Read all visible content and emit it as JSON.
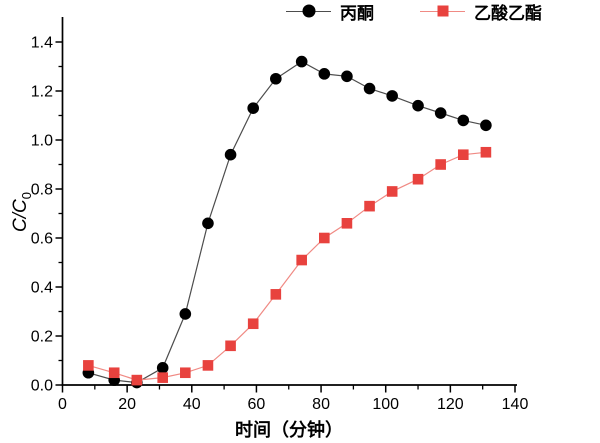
{
  "chart_data": {
    "type": "line",
    "title": "",
    "xlabel": "时间（分钟）",
    "ylabel": "C/C0",
    "ylabel_main": "C/C",
    "ylabel_sub": "0",
    "xlim": [
      0,
      140
    ],
    "ylim": [
      0,
      1.45
    ],
    "grid": false,
    "legend_position": "top",
    "axis_color": "#000000",
    "background_color": "#ffffff",
    "x_major_ticks": [
      "0",
      "20",
      "40",
      "60",
      "80",
      "100",
      "120",
      "140"
    ],
    "x_major_values": [
      0,
      20,
      40,
      60,
      80,
      100,
      120,
      140
    ],
    "x_minor_values": [
      10,
      30,
      50,
      70,
      90,
      110,
      130
    ],
    "y_major_ticks": [
      "0.0",
      "0.2",
      "0.4",
      "0.6",
      "0.8",
      "1.0",
      "1.2",
      "1.4"
    ],
    "y_major_values": [
      0.0,
      0.2,
      0.4,
      0.6,
      0.8,
      1.0,
      1.2,
      1.4
    ],
    "y_minor_values": [
      0.1,
      0.3,
      0.5,
      0.7,
      0.9,
      1.1,
      1.3
    ],
    "x": [
      8,
      16,
      23,
      31,
      38,
      45,
      52,
      59,
      66,
      74,
      81,
      88,
      95,
      102,
      110,
      117,
      124,
      131
    ],
    "series": [
      {
        "name": "丙酮",
        "key": "acetone",
        "marker": "circle",
        "color": "#000000",
        "line_color": "#4d4d4d",
        "values": [
          0.05,
          0.02,
          0.01,
          0.07,
          0.29,
          0.66,
          0.94,
          1.13,
          1.25,
          1.32,
          1.27,
          1.26,
          1.21,
          1.18,
          1.14,
          1.11,
          1.08,
          1.06
        ]
      },
      {
        "name": "乙酸乙酯",
        "key": "ethyl-acetate",
        "marker": "square",
        "color": "#e8423e",
        "line_color": "#f08a84",
        "values": [
          0.08,
          0.05,
          0.02,
          0.03,
          0.05,
          0.08,
          0.16,
          0.25,
          0.37,
          0.51,
          0.6,
          0.66,
          0.73,
          0.79,
          0.84,
          0.9,
          0.94,
          0.95
        ]
      }
    ]
  }
}
